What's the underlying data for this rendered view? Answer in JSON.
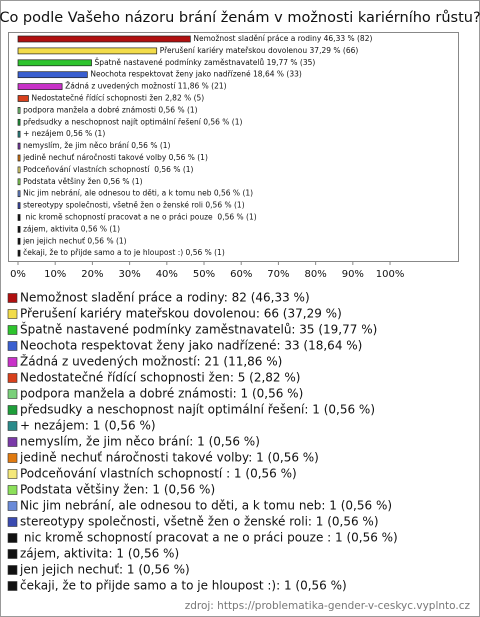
{
  "chart_data": {
    "type": "bar",
    "orientation": "horizontal",
    "title": "Co podle Vašeho názoru brání ženám v možnosti kariérního růstu?",
    "values": [
      46.33,
      37.29,
      19.77,
      18.64,
      11.86,
      2.82,
      0.56,
      0.56,
      0.56,
      0.56,
      0.56,
      0.56,
      0.56,
      0.56,
      0.56,
      0.56,
      0.56,
      0.56,
      0.56
    ],
    "value_labels": [
      "Nemožnost sladění práce a rodiny 46,33 % (82)",
      "Přerušení kariéry mateřskou dovolenou 37,29 % (66)",
      "Špatně nastavené podmínky zaměstnavatelů 19,77 % (35)",
      "Neochota respektovat ženy jako nadřízené 18,64 % (33)",
      "Žádná z uvedených možností 11,86 % (21)",
      "Nedostatečné řídící schopnosti žen 2,82 % (5)",
      "podpora manžela a dobré známosti 0,56 % (1)",
      "předsudky a neschopnost najít optimální řešení 0,56 % (1)",
      "+ nezájem 0,56 % (1)",
      "nemyslím, že jim něco brání 0,56 % (1)",
      "jedině nechuť náročnosti takové volby 0,56 % (1)",
      "Podceňování vlastních schopností  0,56 % (1)",
      "Podstata většiny žen 0,56 % (1)",
      "Nic jim nebrání, ale odnesou to děti, a k tomu neb 0,56 % (1)",
      "stereotypy společnosti, všetně žen o ženské roli 0,56 % (1)",
      " nic kromě schopností pracovat a ne o práci pouze  0,56 % (1)",
      "zájem, aktivita 0,56 % (1)",
      "jen jejich nechuť 0,56 % (1)",
      "čekaji, že to přijde samo a to je hloupost :) 0,56 % (1)"
    ],
    "legend": [
      "Nemožnost sladění práce a rodiny: 82 (46,33 %)",
      "Přerušení kariéry mateřskou dovolenou: 66 (37,29 %)",
      "Špatně nastavené podmínky zaměstnavatelů: 35 (19,77 %)",
      "Neochota respektovat ženy jako nadřízené: 33 (18,64 %)",
      "Žádná z uvedených možností: 21 (11,86 %)",
      "Nedostatečné řídící schopnosti žen: 5 (2,82 %)",
      "podpora manžela a dobré známosti: 1 (0,56 %)",
      "předsudky a neschopnost najít optimální řešení: 1 (0,56 %)",
      "+ nezájem: 1 (0,56 %)",
      "nemyslím, že jim něco brání: 1 (0,56 %)",
      "jedině nechuť náročnosti takové volby: 1 (0,56 %)",
      "Podceňování vlastních schopností : 1 (0,56 %)",
      "Podstata většiny žen: 1 (0,56 %)",
      "Nic jim nebrání, ale odnesou to děti, a k tomu neb: 1 (0,56 %)",
      "stereotypy společnosti, všetně žen o ženské roli: 1 (0,56 %)",
      " nic kromě schopností pracovat a ne o práci pouze : 1 (0,56 %)",
      "zájem, aktivita: 1 (0,56 %)",
      "jen jejich nechuť: 1 (0,56 %)",
      "čekaji, že to přijde samo a to je hloupost :): 1 (0,56 %)"
    ],
    "colors": [
      "#b01010",
      "#f2dc4a",
      "#2ec42e",
      "#3a5fd0",
      "#c832c8",
      "#d8401c",
      "#7ad07a",
      "#1e9e3a",
      "#2a8a8a",
      "#7a3aa8",
      "#e07a10",
      "#f4e87a",
      "#8ce05a",
      "#6a8ad8",
      "#3a4ab0",
      "#111111",
      "#111111",
      "#111111",
      "#111111"
    ],
    "xlim": [
      0,
      118
    ],
    "xticks": [
      {
        "value": 0,
        "label": "0%"
      },
      {
        "value": 10,
        "label": "10%"
      },
      {
        "value": 20,
        "label": "20%"
      },
      {
        "value": 30,
        "label": "30%"
      },
      {
        "value": 40,
        "label": "40%"
      },
      {
        "value": 50,
        "label": "50%"
      },
      {
        "value": 60,
        "label": "60%"
      },
      {
        "value": 70,
        "label": "70%"
      },
      {
        "value": 80,
        "label": "80%"
      },
      {
        "value": 90,
        "label": "90%"
      },
      {
        "value": 100,
        "label": "100%"
      }
    ],
    "grid": false,
    "source": "zdroj: https://problematika-gender-v-ceskyc.vyplnto.cz"
  }
}
